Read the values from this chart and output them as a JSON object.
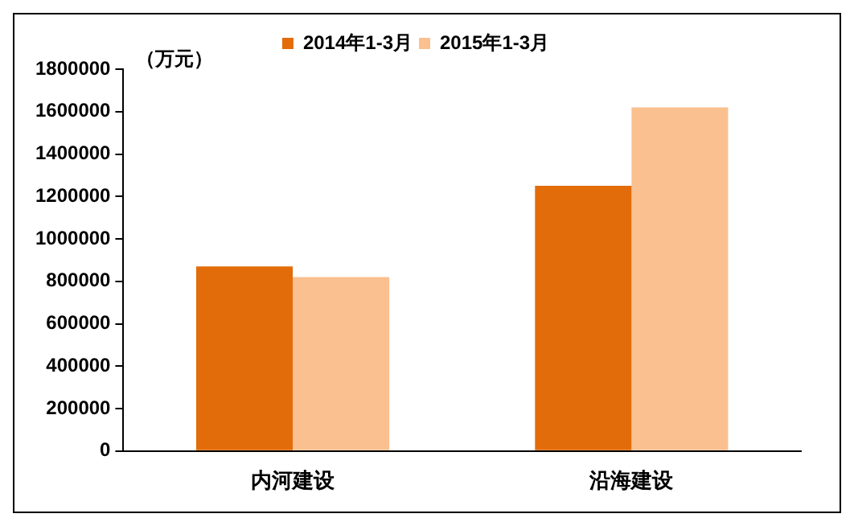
{
  "chart_data": {
    "type": "bar",
    "ylabel": "（万元）",
    "categories": [
      "内河建设",
      "沿海建设"
    ],
    "series": [
      {
        "name": "2014年1-3月",
        "color": "#e36c0a",
        "values": [
          870000,
          1250000
        ]
      },
      {
        "name": "2015年1-3月",
        "color": "#fac090",
        "values": [
          820000,
          1620000
        ]
      }
    ],
    "ylim": [
      0,
      1800000
    ],
    "yticks": [
      0,
      200000,
      400000,
      600000,
      800000,
      1000000,
      1200000,
      1400000,
      1600000,
      1800000
    ],
    "grid": false,
    "legend": "top"
  }
}
